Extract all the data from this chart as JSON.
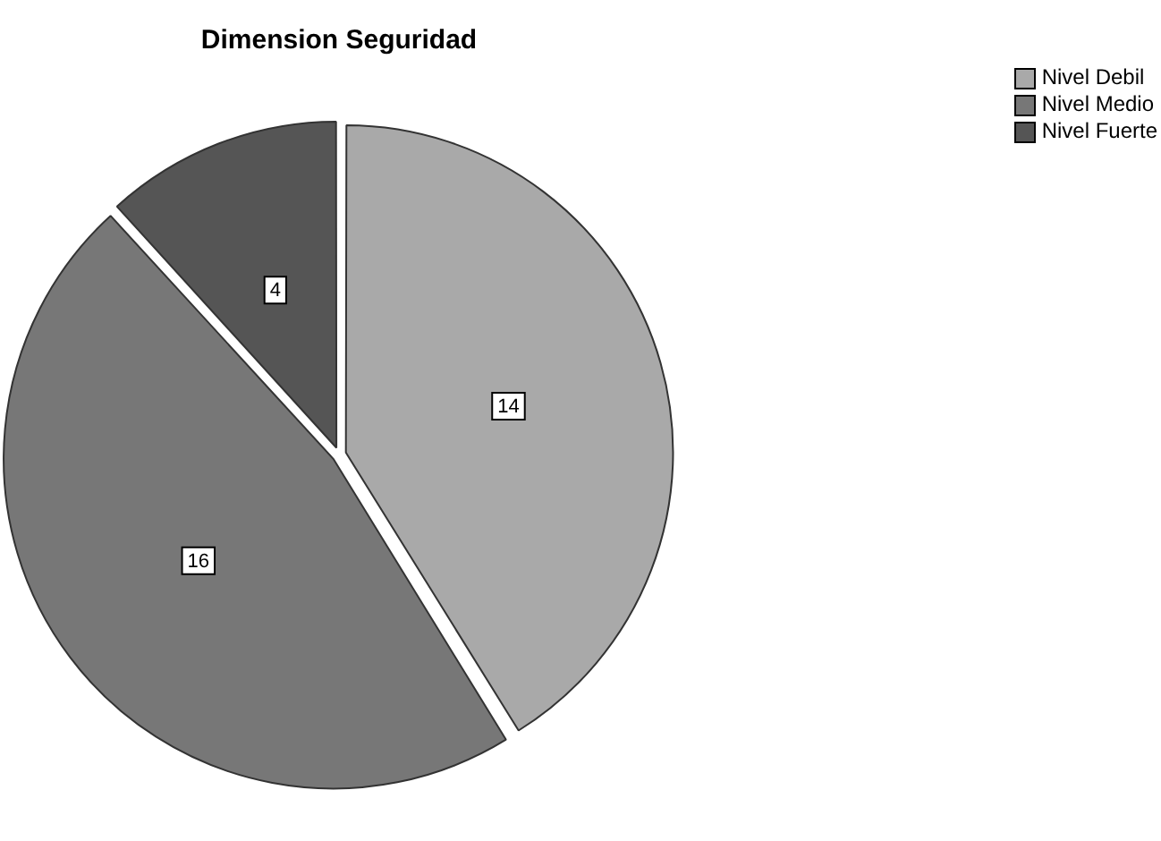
{
  "chart_data": {
    "type": "pie",
    "title": "Dimension Seguridad",
    "categories": [
      "Nivel Debil",
      "Nivel Medio",
      "Nivel Fuerte"
    ],
    "values": [
      14,
      16,
      4
    ],
    "colors": [
      "#a9a9a9",
      "#777777",
      "#555555"
    ],
    "data_labels": true,
    "legend": "top right"
  }
}
